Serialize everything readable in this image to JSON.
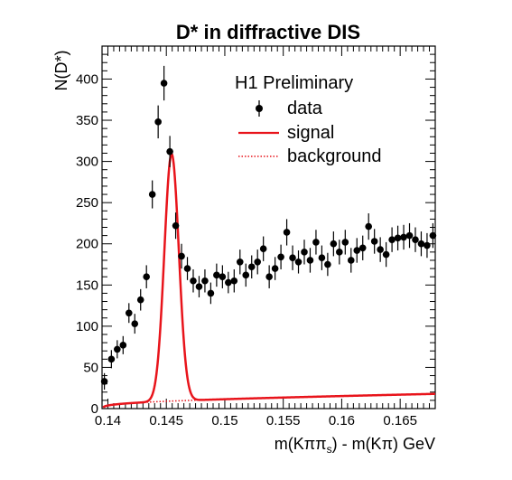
{
  "chart_data": {
    "type": "scatter",
    "title": "D* in diffractive DIS",
    "xlabel": "m(Kππs) - m(Kπ) GeV",
    "ylabel": "N(D*)",
    "xlim": [
      0.1395,
      0.168
    ],
    "ylim": [
      0,
      440
    ],
    "x_ticks": [
      "0.14",
      "0.145",
      "0.15",
      "0.155",
      "0.16",
      "0.165"
    ],
    "y_ticks": [
      "0",
      "50",
      "100",
      "150",
      "200",
      "250",
      "300",
      "350",
      "400"
    ],
    "annotation": "H1 Preliminary",
    "legend_position": "top-right",
    "grid": false,
    "series": [
      {
        "name": "data",
        "style": "points-with-errors",
        "color": "#000000",
        "x": [
          0.1397,
          0.1403,
          0.1408,
          0.1413,
          0.1418,
          0.1423,
          0.1428,
          0.1433,
          0.1438,
          0.1443,
          0.1448,
          0.1453,
          0.1458,
          0.1463,
          0.1468,
          0.1473,
          0.1478,
          0.1483,
          0.1488,
          0.1493,
          0.1498,
          0.1503,
          0.1508,
          0.1513,
          0.1518,
          0.1523,
          0.1528,
          0.1533,
          0.1538,
          0.1543,
          0.1548,
          0.1553,
          0.1558,
          0.1563,
          0.1568,
          0.1573,
          0.1578,
          0.1583,
          0.1588,
          0.1593,
          0.1598,
          0.1603,
          0.1608,
          0.1613,
          0.1618,
          0.1623,
          0.1628,
          0.1633,
          0.1638,
          0.1643,
          0.1648,
          0.1653,
          0.1658,
          0.1663,
          0.1668,
          0.1673,
          0.1678
        ],
        "y": [
          33,
          60,
          72,
          77,
          116,
          103,
          132,
          160,
          260,
          348,
          395,
          312,
          222,
          185,
          170,
          155,
          148,
          155,
          140,
          162,
          160,
          153,
          155,
          178,
          162,
          172,
          178,
          194,
          160,
          170,
          184,
          214,
          183,
          178,
          190,
          180,
          202,
          183,
          175,
          200,
          190,
          202,
          180,
          192,
          195,
          221,
          203,
          193,
          187,
          205,
          207,
          208,
          210,
          205,
          200,
          198,
          210
        ],
        "yerr": [
          10,
          11,
          11,
          11,
          12,
          12,
          13,
          14,
          17,
          20,
          21,
          19,
          16,
          15,
          14,
          14,
          13,
          14,
          13,
          14,
          14,
          13,
          14,
          15,
          14,
          14,
          15,
          15,
          14,
          14,
          15,
          16,
          15,
          14,
          15,
          15,
          15,
          15,
          14,
          15,
          15,
          15,
          15,
          15,
          15,
          16,
          15,
          15,
          15,
          15,
          15,
          15,
          15,
          15,
          15,
          15,
          15
        ]
      },
      {
        "name": "signal",
        "style": "solid-line",
        "color": "#e8141b"
      },
      {
        "name": "background",
        "style": "dotted-line",
        "color": "#e8141b"
      }
    ]
  }
}
